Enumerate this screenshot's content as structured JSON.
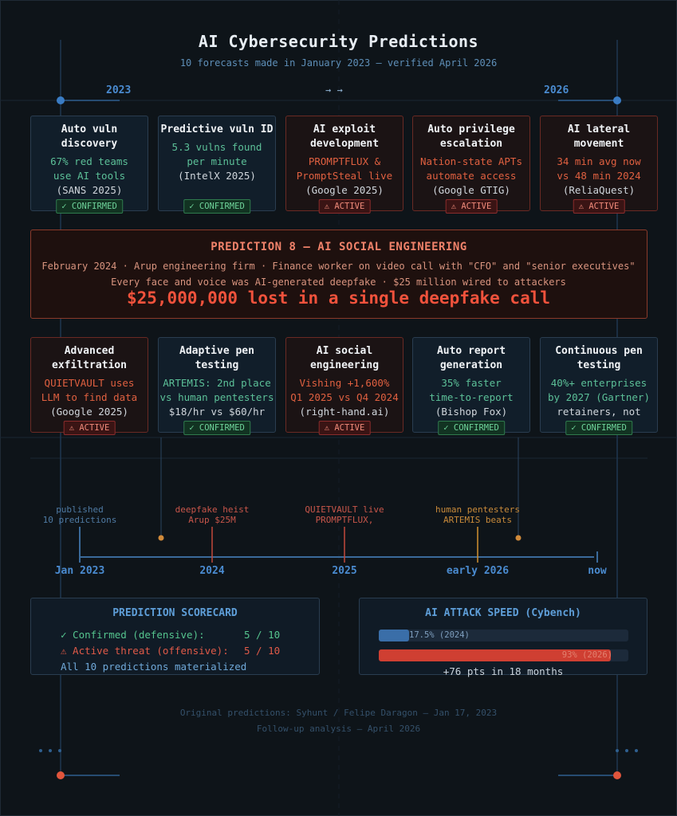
{
  "header": {
    "title": "AI Cybersecurity Predictions",
    "subtitle": "10 forecasts made in January 2023 — verified April 2026",
    "year_start": "2023",
    "year_end": "2026",
    "arrows": "→ →"
  },
  "cards_top": [
    {
      "title": "Auto vuln discovery",
      "line1": "67% red teams",
      "line2": "use AI tools",
      "source": "(SANS 2025)",
      "badge": "✓ CONFIRMED"
    },
    {
      "title": "Predictive vuln ID",
      "line1": "5.3 vulns found",
      "line2": "per minute",
      "source": "(IntelX 2025)",
      "badge": "✓ CONFIRMED"
    },
    {
      "title": "AI exploit development",
      "line1": "PROMPTFLUX &",
      "line2": "PromptSteal live",
      "source": "(Google 2025)",
      "badge": "⚠ ACTIVE"
    },
    {
      "title": "Auto privilege escalation",
      "line1": "Nation-state APTs",
      "line2": "automate access",
      "source": "(Google GTIG)",
      "badge": "⚠ ACTIVE"
    },
    {
      "title": "AI lateral movement",
      "line1": "34 min avg now",
      "line2": "vs 48 min 2024",
      "source": "(ReliaQuest)",
      "badge": "⚠ ACTIVE"
    }
  ],
  "highlight": {
    "title": "PREDICTION 8 — AI SOCIAL ENGINEERING",
    "line1": "February 2024 · Arup engineering firm · Finance worker on video call with \"CFO\" and \"senior executives\"",
    "line2": "Every face and voice was AI-generated deepfake · $25 million wired to attackers",
    "amount": "$25,000,000 lost in a single deepfake call"
  },
  "cards_bottom": [
    {
      "title": "Advanced exfiltration",
      "line1": "QUIETVAULT uses",
      "line2": "LLM to find data",
      "source": "(Google 2025)",
      "badge": "⚠ ACTIVE"
    },
    {
      "title": "Adaptive pen testing",
      "line1": "ARTEMIS: 2nd place",
      "line2": "vs human pentesters",
      "source": "$18/hr vs $60/hr",
      "badge": "✓ CONFIRMED"
    },
    {
      "title": "AI social engineering",
      "line1": "Vishing +1,600%",
      "line2": "Q1 2025 vs Q4 2024",
      "source": "(right-hand.ai)",
      "badge": "⚠ ACTIVE"
    },
    {
      "title": "Auto report generation",
      "line1": "35% faster",
      "line2": "time-to-report",
      "source": "(Bishop Fox)",
      "badge": "✓ CONFIRMED"
    },
    {
      "title": "Continuous pen testing",
      "line1": "40%+ enterprises",
      "line2": "by 2027 (Gartner)",
      "source": "retainers, not audits",
      "badge": "✓ CONFIRMED"
    }
  ],
  "timeline": {
    "events": [
      {
        "line1": "published",
        "line2": "10 predictions"
      },
      {
        "line1": "deepfake heist",
        "line2": "Arup $25M"
      },
      {
        "line1": "QUIETVAULT live",
        "line2": "PROMPTFLUX,"
      },
      {
        "line1": "human pentesters",
        "line2": "ARTEMIS beats"
      }
    ],
    "labels": [
      "Jan 2023",
      "2024",
      "2025",
      "early 2026",
      "now"
    ]
  },
  "scorecard": {
    "title": "PREDICTION SCORECARD",
    "row1_label": "✓ Confirmed (defensive):",
    "row1_value": "5 / 10",
    "row2_label": "⚠ Active threat (offensive):",
    "row2_value": "5 / 10",
    "summary": "All 10 predictions materialized"
  },
  "speed": {
    "title": "AI ATTACK SPEED (Cybench)",
    "bar1_label": "17.5% (2024)",
    "bar1_value": 17.5,
    "bar2_label": "93% (2026)",
    "bar2_value": 93,
    "note": "+76 pts in 18 months",
    "colors": {
      "bar1": "#3a6ea8",
      "bar2": "#cf3f32",
      "track": "#1c2a3a"
    }
  },
  "footer": {
    "line1": "Original predictions: Syhunt / Felipe Daragon — Jan 17, 2023",
    "line2": "Follow-up analysis — April 2026"
  }
}
